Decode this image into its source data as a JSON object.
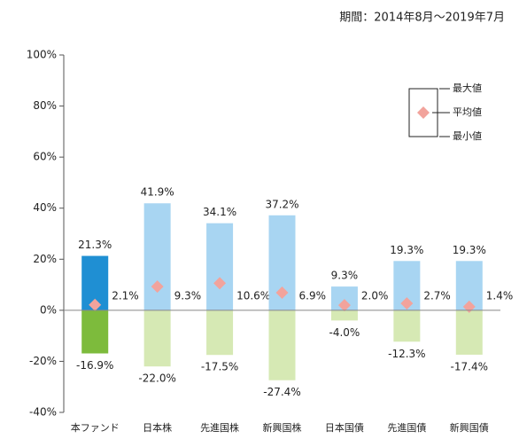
{
  "chart_data": {
    "type": "range_bar",
    "subtitle": "期間：2014年8月～2019年7月",
    "categories": [
      "本ファンド",
      "日本株",
      "先進国株",
      "新興国株",
      "日本国債",
      "先進国債",
      "新興国債"
    ],
    "series": [
      {
        "name": "最大値",
        "role": "max",
        "colors": [
          "#1f8fd3",
          "#a8d5f2",
          "#a8d5f2",
          "#a8d5f2",
          "#a8d5f2",
          "#a8d5f2",
          "#a8d5f2"
        ],
        "values": [
          21.3,
          41.9,
          34.1,
          37.2,
          9.3,
          19.3,
          19.3
        ],
        "value_labels": [
          "21.3%",
          "41.9%",
          "34.1%",
          "37.2%",
          "9.3%",
          "19.3%",
          "19.3%"
        ]
      },
      {
        "name": "平均値",
        "role": "mean",
        "color": "#f2a39c",
        "values": [
          2.1,
          9.3,
          10.6,
          6.9,
          2.0,
          2.7,
          1.4
        ],
        "value_labels": [
          "2.1%",
          "9.3%",
          "10.6%",
          "6.9%",
          "2.0%",
          "2.7%",
          "1.4%"
        ]
      },
      {
        "name": "最小値",
        "role": "min",
        "colors": [
          "#7dbb3c",
          "#d6e9b4",
          "#d6e9b4",
          "#d6e9b4",
          "#d6e9b4",
          "#d6e9b4",
          "#d6e9b4"
        ],
        "values": [
          -16.9,
          -22.0,
          -17.5,
          -27.4,
          -4.0,
          -12.3,
          -17.4
        ],
        "value_labels": [
          "-16.9%",
          "-22.0%",
          "-17.5%",
          "-27.4%",
          "-4.0%",
          "-12.3%",
          "-17.4%"
        ]
      }
    ],
    "ylim": [
      -40,
      100
    ],
    "yticks": [
      {
        "value": -40,
        "label": "-40%"
      },
      {
        "value": -20,
        "label": "-20%"
      },
      {
        "value": 0,
        "label": "0%"
      },
      {
        "value": 20,
        "label": "20%"
      },
      {
        "value": 40,
        "label": "40%"
      },
      {
        "value": 60,
        "label": "60%"
      },
      {
        "value": 80,
        "label": "80%"
      },
      {
        "value": 100,
        "label": "100%"
      }
    ],
    "legend": "top-right"
  }
}
